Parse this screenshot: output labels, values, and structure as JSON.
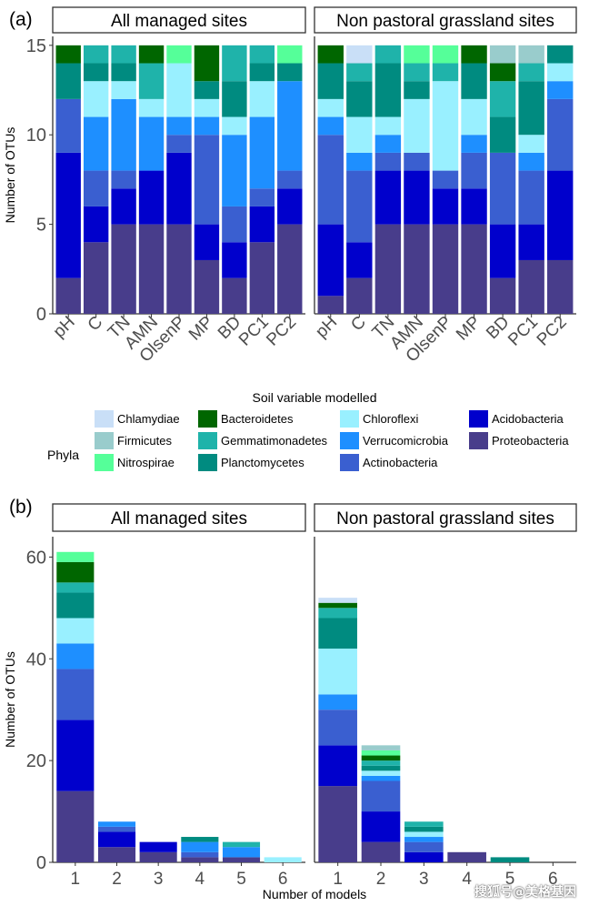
{
  "phyla_colors": {
    "Chlamydiae": "#c9dff7",
    "Firmicutes": "#99cccc",
    "Nitrospirae": "#55ff99",
    "Bacteroidetes": "#006600",
    "Gemmatimonadetes": "#1fb3aa",
    "Planctomycetes": "#008b80",
    "Chloroflexi": "#99f0ff",
    "Verrucomicrobia": "#1e8fff",
    "Actinobacteria": "#3a5fd0",
    "Acidobacteria": "#0000cc",
    "Proteobacteria": "#483d8b"
  },
  "legend": {
    "title": "Phyla",
    "entries": [
      "Chlamydiae",
      "Firmicutes",
      "Nitrospirae",
      "Bacteroidetes",
      "Gemmatimonadetes",
      "Planctomycetes",
      "Chloroflexi",
      "Verrucomicrobia",
      "Actinobacteria",
      "Acidobacteria",
      "Proteobacteria"
    ]
  },
  "watermark": "搜狐号@美格基因",
  "chart_data": [
    {
      "panel_label": "(a)",
      "type": "bar",
      "stacked": true,
      "ylabel": "Number of OTUs",
      "xlabel": "Soil variable modelled",
      "ylim": [
        0,
        15.5
      ],
      "yticks": [
        0,
        5,
        10,
        15
      ],
      "categories": [
        "pH",
        "C",
        "TN",
        "AMN",
        "OlsenP",
        "MP",
        "BD",
        "PC1",
        "PC2"
      ],
      "facets": [
        {
          "title": "All managed sites",
          "bars": [
            [
              [
                "Proteobacteria",
                2
              ],
              [
                "Acidobacteria",
                7
              ],
              [
                "Actinobacteria",
                3
              ],
              [
                "Planctomycetes",
                2
              ],
              [
                "Bacteroidetes",
                1
              ]
            ],
            [
              [
                "Proteobacteria",
                4
              ],
              [
                "Acidobacteria",
                2
              ],
              [
                "Actinobacteria",
                2
              ],
              [
                "Verrucomicrobia",
                3
              ],
              [
                "Chloroflexi",
                2
              ],
              [
                "Planctomycetes",
                1
              ],
              [
                "Gemmatimonadetes",
                1
              ]
            ],
            [
              [
                "Proteobacteria",
                5
              ],
              [
                "Acidobacteria",
                2
              ],
              [
                "Actinobacteria",
                1
              ],
              [
                "Verrucomicrobia",
                4
              ],
              [
                "Chloroflexi",
                1
              ],
              [
                "Planctomycetes",
                1
              ],
              [
                "Gemmatimonadetes",
                1
              ]
            ],
            [
              [
                "Proteobacteria",
                5
              ],
              [
                "Acidobacteria",
                3
              ],
              [
                "Verrucomicrobia",
                3
              ],
              [
                "Chloroflexi",
                1
              ],
              [
                "Gemmatimonadetes",
                2
              ],
              [
                "Bacteroidetes",
                1
              ]
            ],
            [
              [
                "Proteobacteria",
                5
              ],
              [
                "Acidobacteria",
                4
              ],
              [
                "Actinobacteria",
                1
              ],
              [
                "Verrucomicrobia",
                1
              ],
              [
                "Chloroflexi",
                3
              ],
              [
                "Nitrospirae",
                1
              ]
            ],
            [
              [
                "Proteobacteria",
                3
              ],
              [
                "Acidobacteria",
                2
              ],
              [
                "Actinobacteria",
                5
              ],
              [
                "Verrucomicrobia",
                1
              ],
              [
                "Chloroflexi",
                1
              ],
              [
                "Planctomycetes",
                1
              ],
              [
                "Bacteroidetes",
                2
              ]
            ],
            [
              [
                "Proteobacteria",
                2
              ],
              [
                "Acidobacteria",
                2
              ],
              [
                "Actinobacteria",
                2
              ],
              [
                "Verrucomicrobia",
                4
              ],
              [
                "Chloroflexi",
                1
              ],
              [
                "Planctomycetes",
                2
              ],
              [
                "Gemmatimonadetes",
                2
              ]
            ],
            [
              [
                "Proteobacteria",
                4
              ],
              [
                "Acidobacteria",
                2
              ],
              [
                "Actinobacteria",
                1
              ],
              [
                "Verrucomicrobia",
                4
              ],
              [
                "Chloroflexi",
                2
              ],
              [
                "Planctomycetes",
                1
              ],
              [
                "Gemmatimonadetes",
                1
              ]
            ],
            [
              [
                "Proteobacteria",
                5
              ],
              [
                "Acidobacteria",
                2
              ],
              [
                "Actinobacteria",
                1
              ],
              [
                "Verrucomicrobia",
                5
              ],
              [
                "Planctomycetes",
                1
              ],
              [
                "Nitrospirae",
                1
              ]
            ]
          ]
        },
        {
          "title": "Non pastoral grassland sites",
          "bars": [
            [
              [
                "Proteobacteria",
                1
              ],
              [
                "Acidobacteria",
                4
              ],
              [
                "Actinobacteria",
                5
              ],
              [
                "Verrucomicrobia",
                1
              ],
              [
                "Chloroflexi",
                1
              ],
              [
                "Planctomycetes",
                2
              ],
              [
                "Bacteroidetes",
                1
              ]
            ],
            [
              [
                "Proteobacteria",
                2
              ],
              [
                "Acidobacteria",
                2
              ],
              [
                "Actinobacteria",
                4
              ],
              [
                "Verrucomicrobia",
                1
              ],
              [
                "Chloroflexi",
                2
              ],
              [
                "Planctomycetes",
                2
              ],
              [
                "Gemmatimonadetes",
                1
              ],
              [
                "Chlamydiae",
                1
              ]
            ],
            [
              [
                "Proteobacteria",
                5
              ],
              [
                "Acidobacteria",
                3
              ],
              [
                "Actinobacteria",
                1
              ],
              [
                "Verrucomicrobia",
                1
              ],
              [
                "Chloroflexi",
                1
              ],
              [
                "Planctomycetes",
                3
              ],
              [
                "Gemmatimonadetes",
                1
              ]
            ],
            [
              [
                "Proteobacteria",
                5
              ],
              [
                "Acidobacteria",
                3
              ],
              [
                "Actinobacteria",
                1
              ],
              [
                "Chloroflexi",
                3
              ],
              [
                "Planctomycetes",
                1
              ],
              [
                "Gemmatimonadetes",
                1
              ],
              [
                "Nitrospirae",
                1
              ]
            ],
            [
              [
                "Proteobacteria",
                5
              ],
              [
                "Acidobacteria",
                2
              ],
              [
                "Actinobacteria",
                1
              ],
              [
                "Chloroflexi",
                5
              ],
              [
                "Gemmatimonadetes",
                1
              ],
              [
                "Nitrospirae",
                1
              ]
            ],
            [
              [
                "Proteobacteria",
                5
              ],
              [
                "Acidobacteria",
                2
              ],
              [
                "Actinobacteria",
                2
              ],
              [
                "Verrucomicrobia",
                1
              ],
              [
                "Chloroflexi",
                2
              ],
              [
                "Planctomycetes",
                2
              ],
              [
                "Bacteroidetes",
                1
              ]
            ],
            [
              [
                "Proteobacteria",
                2
              ],
              [
                "Acidobacteria",
                3
              ],
              [
                "Actinobacteria",
                4
              ],
              [
                "Planctomycetes",
                2
              ],
              [
                "Gemmatimonadetes",
                2
              ],
              [
                "Bacteroidetes",
                1
              ],
              [
                "Firmicutes",
                1
              ]
            ],
            [
              [
                "Proteobacteria",
                3
              ],
              [
                "Acidobacteria",
                2
              ],
              [
                "Actinobacteria",
                3
              ],
              [
                "Verrucomicrobia",
                1
              ],
              [
                "Chloroflexi",
                1
              ],
              [
                "Planctomycetes",
                3
              ],
              [
                "Gemmatimonadetes",
                1
              ],
              [
                "Firmicutes",
                1
              ]
            ],
            [
              [
                "Proteobacteria",
                3
              ],
              [
                "Acidobacteria",
                5
              ],
              [
                "Actinobacteria",
                4
              ],
              [
                "Verrucomicrobia",
                1
              ],
              [
                "Chloroflexi",
                1
              ],
              [
                "Planctomycetes",
                1
              ]
            ]
          ]
        }
      ]
    },
    {
      "panel_label": "(b)",
      "type": "bar",
      "stacked": true,
      "ylabel": "Number of OTUs",
      "xlabel": "Number of models",
      "ylim": [
        0,
        64
      ],
      "yticks": [
        0,
        20,
        40,
        60
      ],
      "categories": [
        "1",
        "2",
        "3",
        "4",
        "5",
        "6"
      ],
      "facets": [
        {
          "title": "All managed sites",
          "bars": [
            [
              [
                "Proteobacteria",
                14
              ],
              [
                "Acidobacteria",
                14
              ],
              [
                "Actinobacteria",
                10
              ],
              [
                "Verrucomicrobia",
                5
              ],
              [
                "Chloroflexi",
                5
              ],
              [
                "Planctomycetes",
                5
              ],
              [
                "Gemmatimonadetes",
                2
              ],
              [
                "Bacteroidetes",
                4
              ],
              [
                "Nitrospirae",
                2
              ]
            ],
            [
              [
                "Proteobacteria",
                3
              ],
              [
                "Acidobacteria",
                3
              ],
              [
                "Actinobacteria",
                1
              ],
              [
                "Verrucomicrobia",
                1
              ]
            ],
            [
              [
                "Proteobacteria",
                2
              ],
              [
                "Acidobacteria",
                2
              ]
            ],
            [
              [
                "Proteobacteria",
                1
              ],
              [
                "Actinobacteria",
                1
              ],
              [
                "Verrucomicrobia",
                2
              ],
              [
                "Planctomycetes",
                1
              ]
            ],
            [
              [
                "Proteobacteria",
                1
              ],
              [
                "Verrucomicrobia",
                2
              ],
              [
                "Gemmatimonadetes",
                1
              ]
            ],
            [
              [
                "Chloroflexi",
                1
              ]
            ]
          ]
        },
        {
          "title": "Non pastoral grassland sites",
          "bars": [
            [
              [
                "Proteobacteria",
                15
              ],
              [
                "Acidobacteria",
                8
              ],
              [
                "Actinobacteria",
                7
              ],
              [
                "Verrucomicrobia",
                3
              ],
              [
                "Chloroflexi",
                9
              ],
              [
                "Planctomycetes",
                6
              ],
              [
                "Gemmatimonadetes",
                2
              ],
              [
                "Bacteroidetes",
                1
              ],
              [
                "Chlamydiae",
                1
              ]
            ],
            [
              [
                "Proteobacteria",
                4
              ],
              [
                "Acidobacteria",
                6
              ],
              [
                "Actinobacteria",
                6
              ],
              [
                "Verrucomicrobia",
                1
              ],
              [
                "Chloroflexi",
                1
              ],
              [
                "Planctomycetes",
                1
              ],
              [
                "Gemmatimonadetes",
                1
              ],
              [
                "Bacteroidetes",
                1
              ],
              [
                "Nitrospirae",
                1
              ],
              [
                "Firmicutes",
                1
              ]
            ],
            [
              [
                "Acidobacteria",
                2
              ],
              [
                "Actinobacteria",
                2
              ],
              [
                "Verrucomicrobia",
                1
              ],
              [
                "Chloroflexi",
                1
              ],
              [
                "Planctomycetes",
                1
              ],
              [
                "Gemmatimonadetes",
                1
              ]
            ],
            [
              [
                "Proteobacteria",
                2
              ]
            ],
            [
              [
                "Planctomycetes",
                1
              ]
            ],
            []
          ]
        }
      ]
    }
  ]
}
